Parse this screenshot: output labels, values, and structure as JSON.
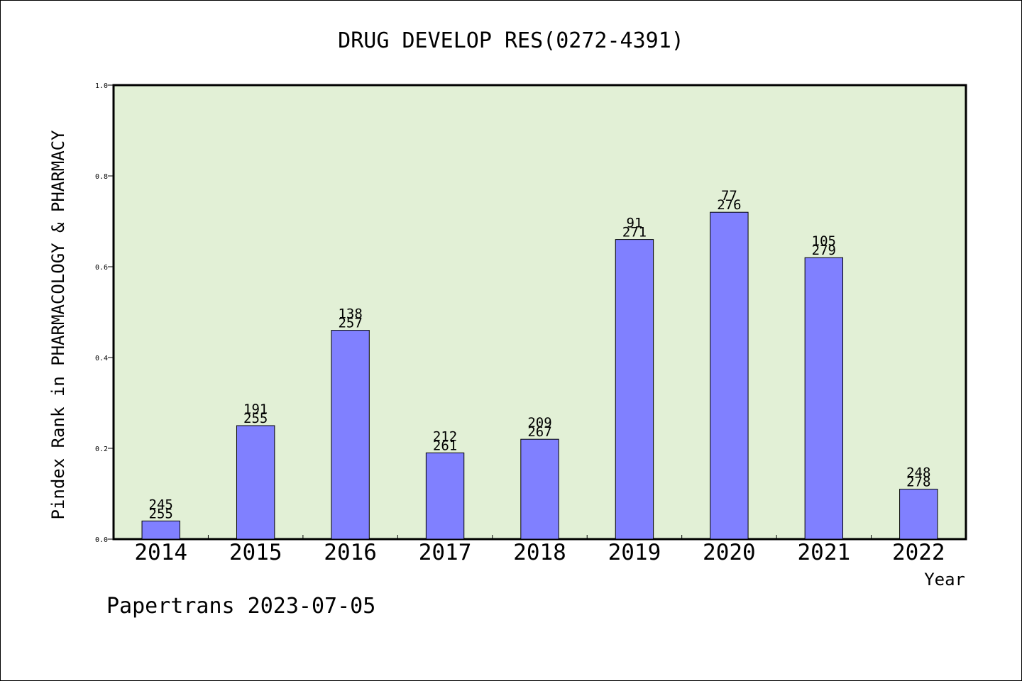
{
  "chart_data": {
    "type": "bar",
    "title": "DRUG DEVELOP RES(0272-4391)",
    "xlabel": "Year",
    "ylabel": "Pindex Rank in PHARMACOLOGY & PHARMACY",
    "ylim": [
      0,
      1.0
    ],
    "yticks": [
      "0.0",
      "0.2",
      "0.4",
      "0.6",
      "0.8",
      "1.0"
    ],
    "grid": false,
    "categories": [
      "2014",
      "2015",
      "2016",
      "2017",
      "2018",
      "2019",
      "2020",
      "2021",
      "2022"
    ],
    "values": [
      0.04,
      0.25,
      0.46,
      0.19,
      0.22,
      0.66,
      0.72,
      0.62,
      0.11
    ],
    "rank_labels": [
      "245",
      "191",
      "138",
      "212",
      "209",
      "91",
      "77",
      "105",
      "248"
    ],
    "total_labels": [
      "255",
      "255",
      "257",
      "261",
      "267",
      "271",
      "276",
      "279",
      "278"
    ]
  },
  "footer": "Papertrans 2023-07-05",
  "colors": {
    "plot_background": "#e2f0d6",
    "bar_fill": "#8080ff",
    "bar_stroke": "#000000",
    "frame": "#000000"
  }
}
